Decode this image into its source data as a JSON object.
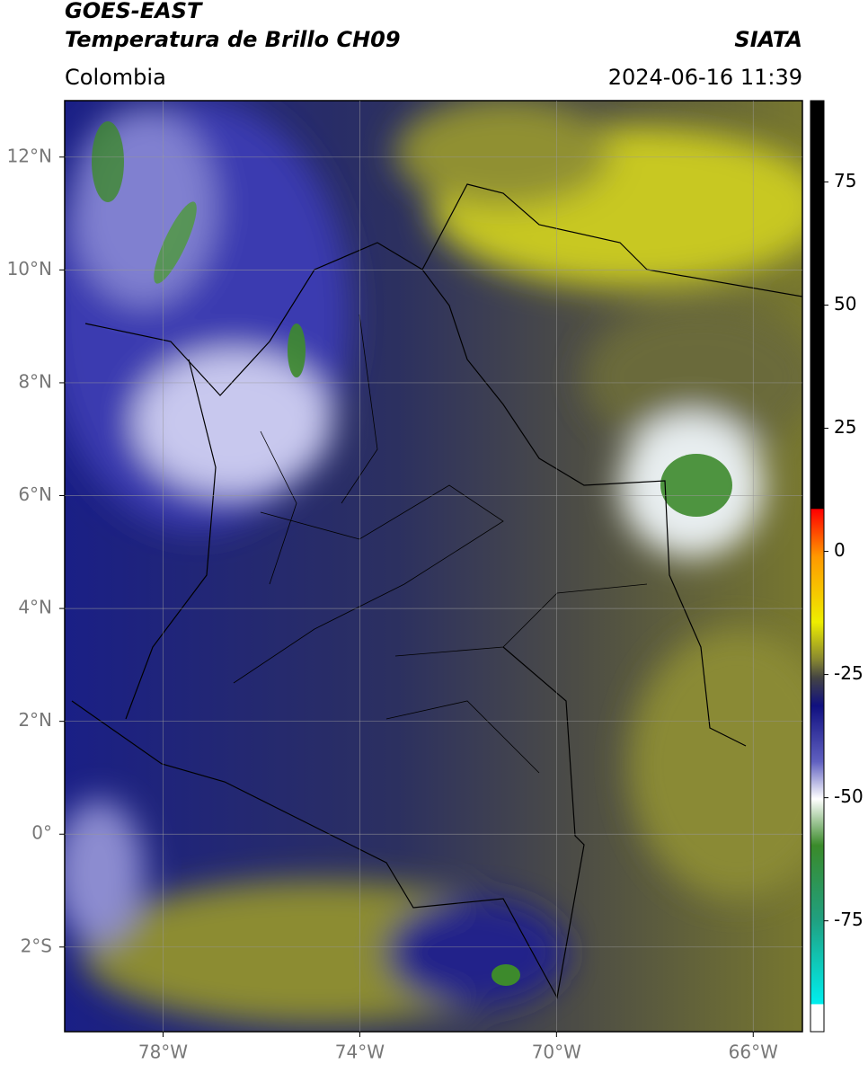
{
  "header": {
    "title": "GOES-EAST",
    "subtitle": "Temperatura de Brillo CH09",
    "region": "Colombia",
    "source": "SIATA",
    "datetime": "2024-06-16 11:39"
  },
  "map": {
    "lon_range": [
      -80,
      -65
    ],
    "lat_range": [
      -3.5,
      13
    ],
    "lon_ticks": [
      {
        "value": -78,
        "label": "78°W"
      },
      {
        "value": -74,
        "label": "74°W"
      },
      {
        "value": -70,
        "label": "70°W"
      },
      {
        "value": -66,
        "label": "66°W"
      }
    ],
    "lat_ticks": [
      {
        "value": 12,
        "label": "12°N"
      },
      {
        "value": 10,
        "label": "10°N"
      },
      {
        "value": 8,
        "label": "8°N"
      },
      {
        "value": 6,
        "label": "6°N"
      },
      {
        "value": 4,
        "label": "4°N"
      },
      {
        "value": 2,
        "label": "2°N"
      },
      {
        "value": 0,
        "label": "0°"
      },
      {
        "value": -2,
        "label": "2°S"
      }
    ]
  },
  "colorbar": {
    "range": [
      -97.5,
      91.5
    ],
    "ticks": [
      75,
      50,
      25,
      0,
      -25,
      -50,
      -75
    ]
  }
}
